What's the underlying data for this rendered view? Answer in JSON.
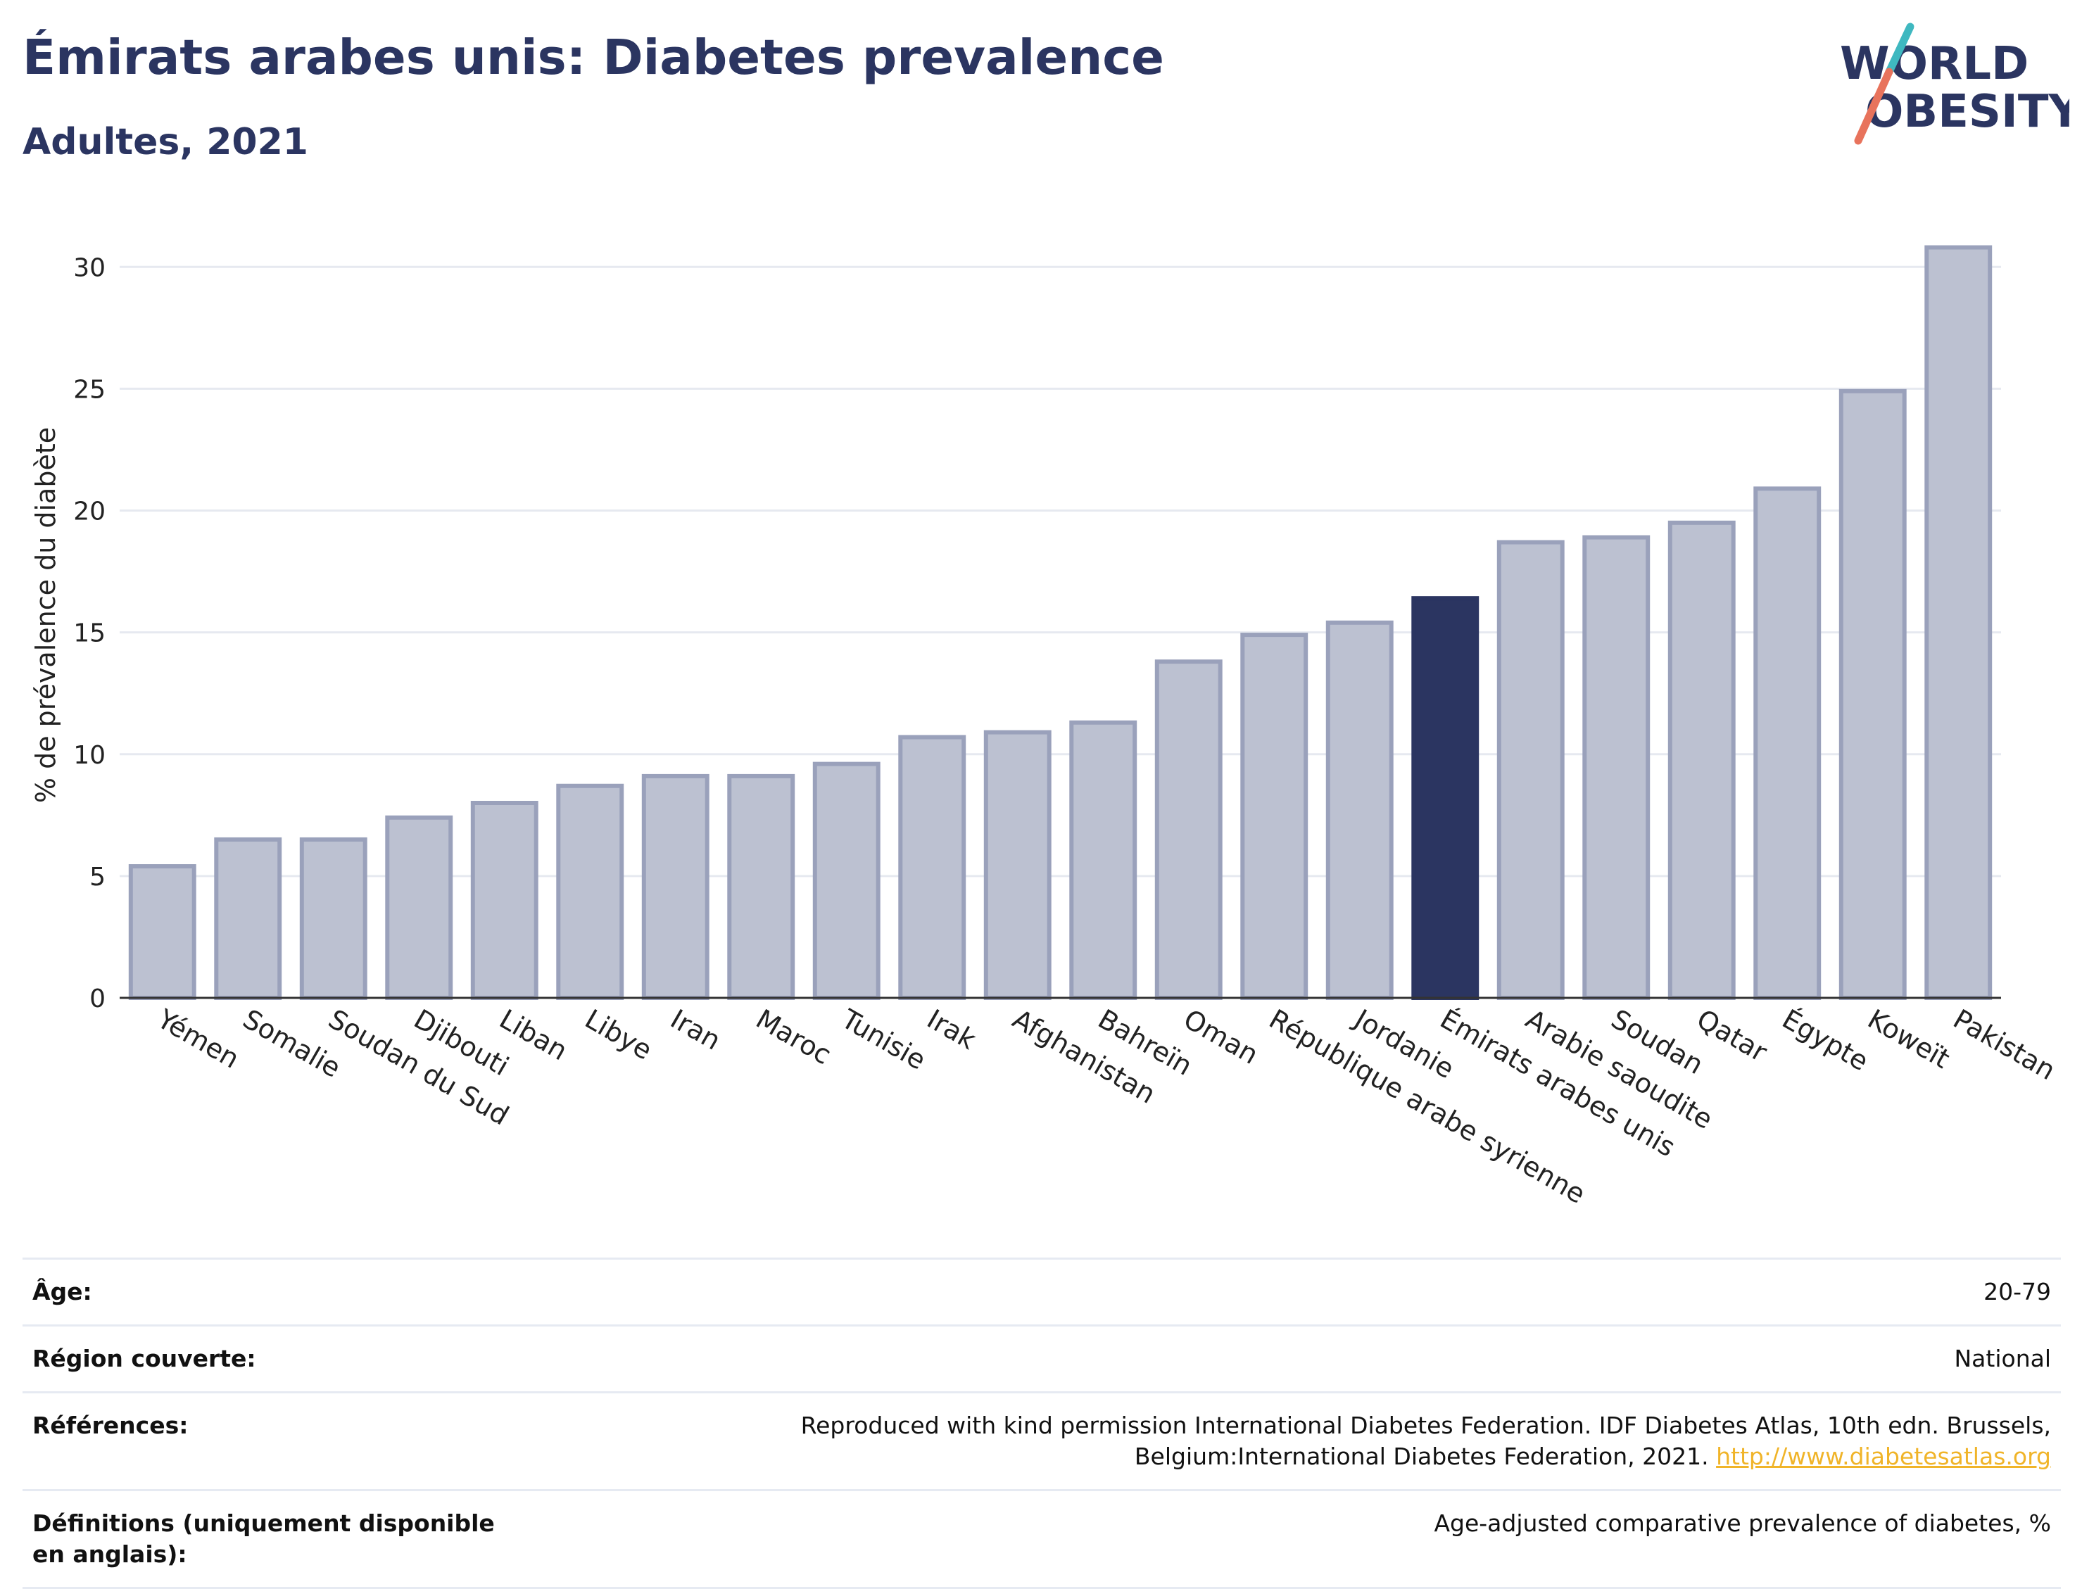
{
  "header": {
    "title": "Émirats arabes unis: Diabetes prevalence",
    "subtitle": "Adultes, 2021"
  },
  "logo": {
    "line1": "WORLD",
    "line2": "OBESITY",
    "accent_teal": "#3fb8c0",
    "accent_coral": "#e8735c"
  },
  "chart_data": {
    "type": "bar",
    "ylabel": "% de prévalence du diabète",
    "xlabel": "",
    "ylim": [
      0,
      32
    ],
    "yticks": [
      0,
      5,
      10,
      15,
      20,
      25,
      30
    ],
    "grid": true,
    "highlight": "Émirats arabes unis",
    "colors": {
      "bar": "#bcc1d1",
      "bar_border": "#9aa1bb",
      "highlight": "#2b3561",
      "axis": "#333333",
      "grid": "#e6e9f0"
    },
    "categories": [
      "Yémen",
      "Somalie",
      "Soudan du Sud",
      "Djibouti",
      "Liban",
      "Libye",
      "Iran",
      "Maroc",
      "Tunisie",
      "Irak",
      "Afghanistan",
      "Bahreïn",
      "Oman",
      "République arabe syrienne",
      "Jordanie",
      "Émirats arabes unis",
      "Arabie saoudite",
      "Soudan",
      "Qatar",
      "Égypte",
      "Koweït",
      "Pakistan"
    ],
    "values": [
      5.4,
      6.5,
      6.5,
      7.4,
      8.0,
      8.7,
      9.1,
      9.1,
      9.6,
      10.7,
      10.9,
      11.3,
      13.8,
      14.9,
      15.4,
      16.4,
      18.7,
      18.9,
      19.5,
      20.9,
      24.9,
      30.8
    ]
  },
  "info": [
    {
      "label": "Âge:",
      "value": "20-79"
    },
    {
      "label": "Région couverte:",
      "value": "National"
    },
    {
      "label": "Références:",
      "value": "Reproduced with kind permission International Diabetes Federation.  IDF Diabetes Atlas, 10th edn. Brussels, Belgium:International Diabetes Federation, 2021.",
      "link": "http://www.diabetesatlas.org"
    },
    {
      "label": "Définitions (uniquement disponible en anglais):",
      "value": "Age-adjusted comparative prevalence of diabetes, %"
    }
  ]
}
